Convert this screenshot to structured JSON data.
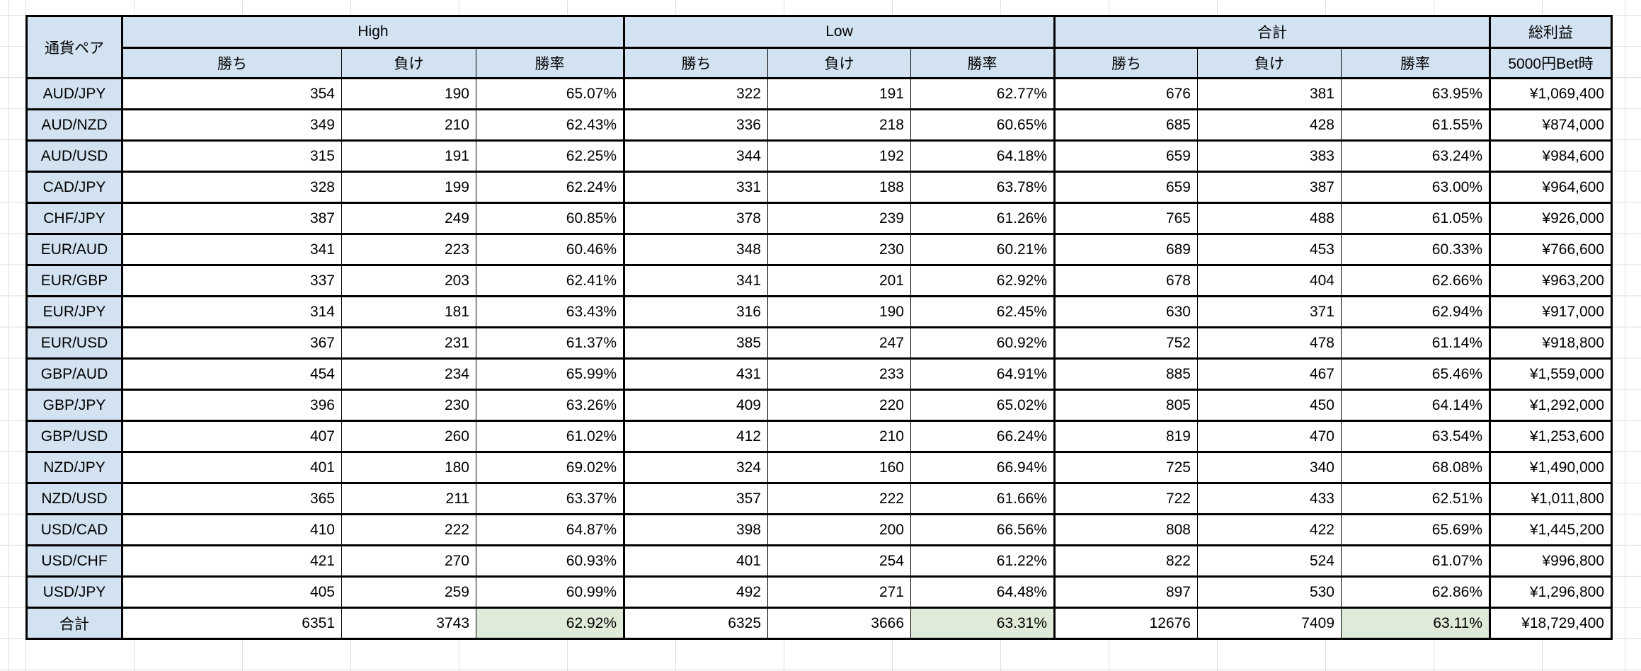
{
  "table": {
    "header": {
      "currency_pair": "通貨ペア",
      "groups": [
        {
          "label": "High"
        },
        {
          "label": "Low"
        },
        {
          "label": "合計"
        }
      ],
      "sub_labels": [
        "勝ち",
        "負け",
        "勝率"
      ],
      "profit_label": "総利益",
      "profit_sub_label": "5000円Bet時"
    },
    "rows": [
      {
        "pair": "AUD/JPY",
        "high": [
          "354",
          "190",
          "65.07%"
        ],
        "low": [
          "322",
          "191",
          "62.77%"
        ],
        "total": [
          "676",
          "381",
          "63.95%"
        ],
        "profit": "¥1,069,400"
      },
      {
        "pair": "AUD/NZD",
        "high": [
          "349",
          "210",
          "62.43%"
        ],
        "low": [
          "336",
          "218",
          "60.65%"
        ],
        "total": [
          "685",
          "428",
          "61.55%"
        ],
        "profit": "¥874,000"
      },
      {
        "pair": "AUD/USD",
        "high": [
          "315",
          "191",
          "62.25%"
        ],
        "low": [
          "344",
          "192",
          "64.18%"
        ],
        "total": [
          "659",
          "383",
          "63.24%"
        ],
        "profit": "¥984,600"
      },
      {
        "pair": "CAD/JPY",
        "high": [
          "328",
          "199",
          "62.24%"
        ],
        "low": [
          "331",
          "188",
          "63.78%"
        ],
        "total": [
          "659",
          "387",
          "63.00%"
        ],
        "profit": "¥964,600"
      },
      {
        "pair": "CHF/JPY",
        "high": [
          "387",
          "249",
          "60.85%"
        ],
        "low": [
          "378",
          "239",
          "61.26%"
        ],
        "total": [
          "765",
          "488",
          "61.05%"
        ],
        "profit": "¥926,000"
      },
      {
        "pair": "EUR/AUD",
        "high": [
          "341",
          "223",
          "60.46%"
        ],
        "low": [
          "348",
          "230",
          "60.21%"
        ],
        "total": [
          "689",
          "453",
          "60.33%"
        ],
        "profit": "¥766,600"
      },
      {
        "pair": "EUR/GBP",
        "high": [
          "337",
          "203",
          "62.41%"
        ],
        "low": [
          "341",
          "201",
          "62.92%"
        ],
        "total": [
          "678",
          "404",
          "62.66%"
        ],
        "profit": "¥963,200"
      },
      {
        "pair": "EUR/JPY",
        "high": [
          "314",
          "181",
          "63.43%"
        ],
        "low": [
          "316",
          "190",
          "62.45%"
        ],
        "total": [
          "630",
          "371",
          "62.94%"
        ],
        "profit": "¥917,000"
      },
      {
        "pair": "EUR/USD",
        "high": [
          "367",
          "231",
          "61.37%"
        ],
        "low": [
          "385",
          "247",
          "60.92%"
        ],
        "total": [
          "752",
          "478",
          "61.14%"
        ],
        "profit": "¥918,800"
      },
      {
        "pair": "GBP/AUD",
        "high": [
          "454",
          "234",
          "65.99%"
        ],
        "low": [
          "431",
          "233",
          "64.91%"
        ],
        "total": [
          "885",
          "467",
          "65.46%"
        ],
        "profit": "¥1,559,000"
      },
      {
        "pair": "GBP/JPY",
        "high": [
          "396",
          "230",
          "63.26%"
        ],
        "low": [
          "409",
          "220",
          "65.02%"
        ],
        "total": [
          "805",
          "450",
          "64.14%"
        ],
        "profit": "¥1,292,000"
      },
      {
        "pair": "GBP/USD",
        "high": [
          "407",
          "260",
          "61.02%"
        ],
        "low": [
          "412",
          "210",
          "66.24%"
        ],
        "total": [
          "819",
          "470",
          "63.54%"
        ],
        "profit": "¥1,253,600"
      },
      {
        "pair": "NZD/JPY",
        "high": [
          "401",
          "180",
          "69.02%"
        ],
        "low": [
          "324",
          "160",
          "66.94%"
        ],
        "total": [
          "725",
          "340",
          "68.08%"
        ],
        "profit": "¥1,490,000"
      },
      {
        "pair": "NZD/USD",
        "high": [
          "365",
          "211",
          "63.37%"
        ],
        "low": [
          "357",
          "222",
          "61.66%"
        ],
        "total": [
          "722",
          "433",
          "62.51%"
        ],
        "profit": "¥1,011,800"
      },
      {
        "pair": "USD/CAD",
        "high": [
          "410",
          "222",
          "64.87%"
        ],
        "low": [
          "398",
          "200",
          "66.56%"
        ],
        "total": [
          "808",
          "422",
          "65.69%"
        ],
        "profit": "¥1,445,200"
      },
      {
        "pair": "USD/CHF",
        "high": [
          "421",
          "270",
          "60.93%"
        ],
        "low": [
          "401",
          "254",
          "61.22%"
        ],
        "total": [
          "822",
          "524",
          "61.07%"
        ],
        "profit": "¥996,800"
      },
      {
        "pair": "USD/JPY",
        "high": [
          "405",
          "259",
          "60.99%"
        ],
        "low": [
          "492",
          "271",
          "64.48%"
        ],
        "total": [
          "897",
          "530",
          "62.86%"
        ],
        "profit": "¥1,296,800"
      },
      {
        "pair": "合計",
        "is_total": true,
        "high": [
          "6351",
          "3743",
          "62.92%"
        ],
        "low": [
          "6325",
          "3666",
          "63.31%"
        ],
        "total": [
          "12676",
          "7409",
          "63.11%"
        ],
        "profit": "¥18,729,400"
      }
    ]
  },
  "colors": {
    "header_fill": "#d2e2f1",
    "total_rate_fill": "#dfead8",
    "table_border": "#000000",
    "gridline": "#e0e0e0"
  }
}
